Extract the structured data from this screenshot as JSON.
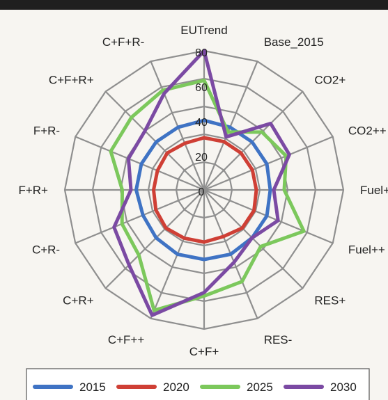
{
  "chart_data": {
    "type": "radar",
    "axes": [
      "EUTrend",
      "Base_2015",
      "CO2+",
      "CO2++",
      "Fuel+",
      "Fuel++",
      "RES+",
      "RES-",
      "C+F+",
      "C+F++",
      "C+R+",
      "C+R-",
      "F+R+",
      "F+R-",
      "C+F+R+",
      "C+F+R-"
    ],
    "ticks": [
      0,
      20,
      40,
      60,
      80
    ],
    "range": [
      0,
      80
    ],
    "grid": true,
    "legend_position": "bottom",
    "series": [
      {
        "name": "2015",
        "color": "#3f73c4",
        "values": [
          40,
          39,
          39,
          39,
          38,
          39,
          39,
          40,
          40,
          40,
          39,
          38,
          39,
          39,
          39,
          39
        ]
      },
      {
        "name": "2020",
        "color": "#cf3f35",
        "values": [
          30,
          30,
          30,
          30,
          30,
          31,
          31,
          29,
          30,
          30,
          31,
          30,
          29,
          29,
          30,
          29
        ]
      },
      {
        "name": "2025",
        "color": "#7cc85c",
        "values": [
          63,
          36,
          47,
          51,
          46,
          62,
          46,
          57,
          61,
          75,
          53,
          51,
          47,
          58,
          59,
          62
        ]
      },
      {
        "name": "2030",
        "color": "#7b4aa3",
        "values": [
          80,
          33,
          54,
          53,
          40,
          46,
          39,
          45,
          59,
          78,
          61,
          56,
          42,
          47,
          48,
          60
        ]
      }
    ]
  }
}
